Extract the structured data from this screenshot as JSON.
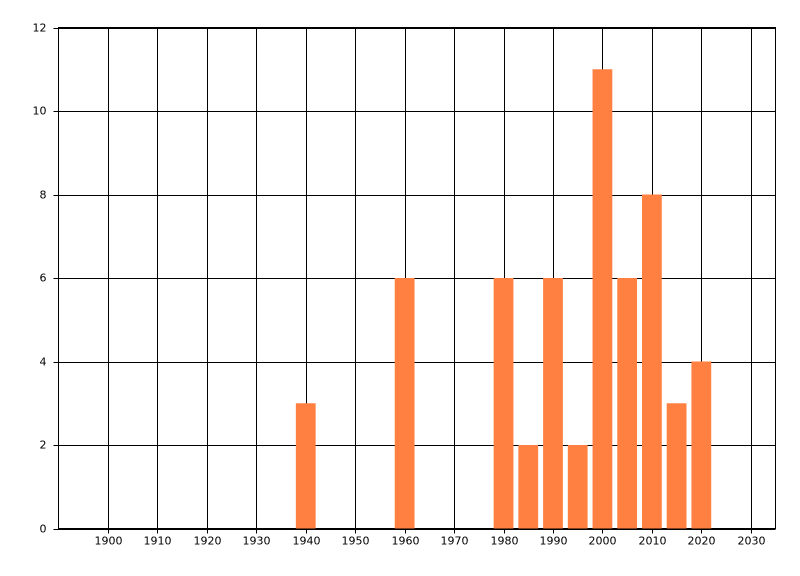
{
  "chart_data": {
    "type": "bar",
    "x": [
      1940,
      1960,
      1980,
      1985,
      1990,
      1995,
      2000,
      2005,
      2010,
      2015,
      2020
    ],
    "values": [
      3,
      6,
      6,
      2,
      6,
      2,
      11,
      6,
      8,
      3,
      4
    ],
    "color": "#ff8040",
    "xlim": [
      1890,
      2035
    ],
    "xticks": [
      1900,
      1910,
      1920,
      1930,
      1940,
      1950,
      1960,
      1970,
      1980,
      1990,
      2000,
      2010,
      2020,
      2030
    ],
    "ylim": [
      0,
      12
    ],
    "yticks": [
      0,
      2,
      4,
      6,
      8,
      10,
      12
    ],
    "grid": true
  }
}
